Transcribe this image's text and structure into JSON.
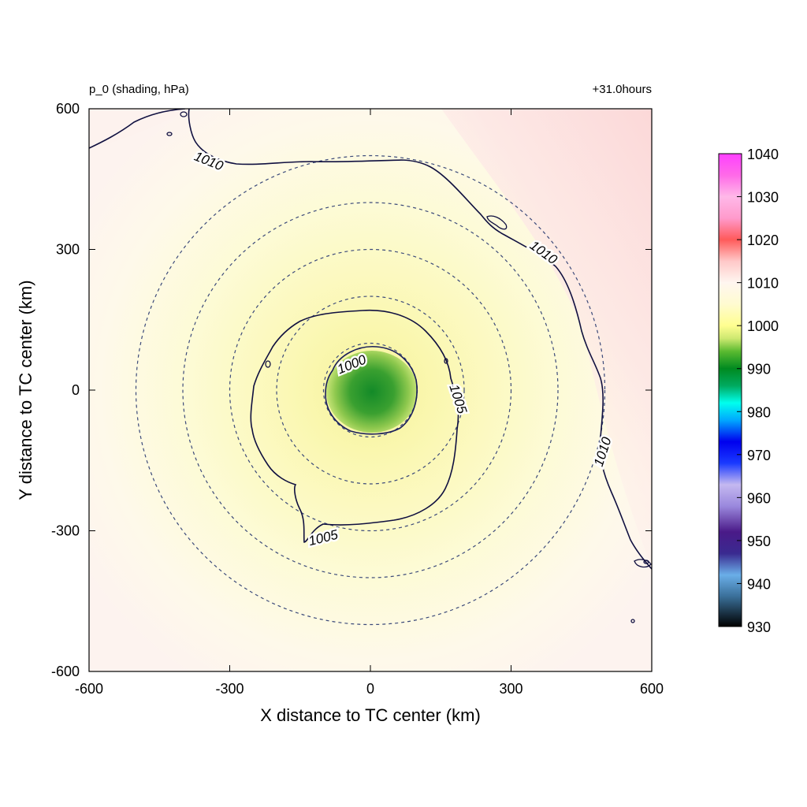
{
  "chart_data": {
    "type": "heatmap",
    "title_left": "p_0 (shading, hPa)",
    "title_right": "+31.0hours",
    "xlabel": "X distance to TC center (km)",
    "ylabel": "Y distance to TC center (km)",
    "xlim": [
      -600,
      600
    ],
    "ylim": [
      -600,
      600
    ],
    "xticks": [
      "-600",
      "-300",
      "0",
      "300",
      "600"
    ],
    "yticks": [
      "600",
      "300",
      "0",
      "-300",
      "-600"
    ],
    "colorbar": {
      "min": 930,
      "max": 1040,
      "ticks": [
        "1040",
        "1030",
        "1020",
        "1010",
        "1000",
        "990",
        "980",
        "970",
        "960",
        "950",
        "940",
        "930"
      ],
      "stops": [
        {
          "v": 930,
          "c": "#000000"
        },
        {
          "v": 937,
          "c": "#3a6f99"
        },
        {
          "v": 942,
          "c": "#6aaee8"
        },
        {
          "v": 947,
          "c": "#3a2a90"
        },
        {
          "v": 952,
          "c": "#4a1a88"
        },
        {
          "v": 958,
          "c": "#9a88dd"
        },
        {
          "v": 963,
          "c": "#c4b8f0"
        },
        {
          "v": 968,
          "c": "#1a3aff"
        },
        {
          "v": 973,
          "c": "#0000ee"
        },
        {
          "v": 978,
          "c": "#00a8ff"
        },
        {
          "v": 982,
          "c": "#00ffee"
        },
        {
          "v": 986,
          "c": "#00aa60"
        },
        {
          "v": 990,
          "c": "#008a20"
        },
        {
          "v": 994,
          "c": "#5aba30"
        },
        {
          "v": 997,
          "c": "#cde870"
        },
        {
          "v": 1000,
          "c": "#fffe90"
        },
        {
          "v": 1005,
          "c": "#fffbd0"
        },
        {
          "v": 1010,
          "c": "#fff6f0"
        },
        {
          "v": 1015,
          "c": "#ffc8c8"
        },
        {
          "v": 1020,
          "c": "#ff5a5a"
        },
        {
          "v": 1025,
          "c": "#ff9acc"
        },
        {
          "v": 1030,
          "c": "#ffb8e8"
        },
        {
          "v": 1035,
          "c": "#ff6ae8"
        },
        {
          "v": 1040,
          "c": "#ff40ff"
        }
      ]
    },
    "range_circles_km": [
      100,
      200,
      300,
      400,
      500
    ],
    "contours": [
      {
        "level": 1000,
        "label": "1000"
      },
      {
        "level": 1005,
        "label": "1005"
      },
      {
        "level": 1010,
        "label": "1010"
      }
    ]
  }
}
